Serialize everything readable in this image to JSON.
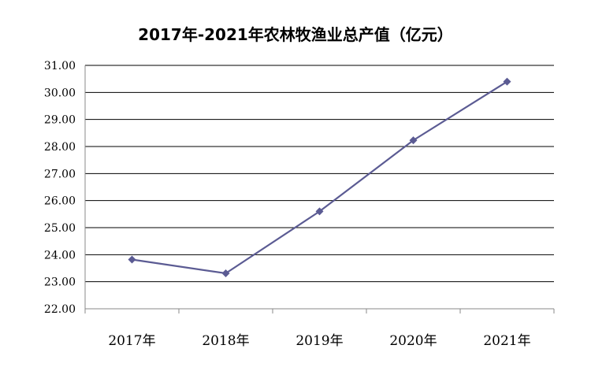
{
  "chart_data": {
    "type": "line",
    "title": "2017年-2021年农林牧渔业总产值（亿元）",
    "categories": [
      "2017年",
      "2018年",
      "2019年",
      "2020年",
      "2021年"
    ],
    "series": [
      {
        "values": [
          23.82,
          23.31,
          25.6,
          28.23,
          30.4
        ]
      }
    ],
    "ylim": [
      22.0,
      31.0
    ],
    "yticks": [
      "22.00",
      "23.00",
      "24.00",
      "25.00",
      "26.00",
      "27.00",
      "28.00",
      "29.00",
      "30.00",
      "31.00"
    ],
    "grid": true,
    "legend": "none",
    "colors": {
      "line": "#5b5b93",
      "marker": "#5b5b93",
      "grid": "#000000",
      "axis": "#888888"
    }
  }
}
